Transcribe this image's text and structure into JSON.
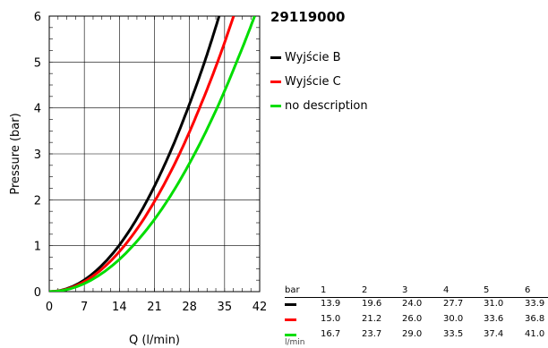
{
  "chart_data": {
    "type": "line",
    "title": "29119000",
    "xlabel": "Q (l/min)",
    "ylabel": "Pressure (bar)",
    "xlim": [
      0,
      42
    ],
    "ylim": [
      0,
      6
    ],
    "xticks": [
      0,
      7,
      14,
      21,
      28,
      35,
      42
    ],
    "yticks": [
      0,
      1,
      2,
      3,
      4,
      5,
      6
    ],
    "grid": true,
    "legend_position": "right",
    "series": [
      {
        "name": "Wyjście B",
        "color": "#000000",
        "x": [
          0,
          13.9,
          19.6,
          24.0,
          27.7,
          31.0,
          33.9,
          34.5
        ],
        "y": [
          0,
          1,
          2,
          3,
          4,
          5,
          6,
          6.2
        ]
      },
      {
        "name": "Wyjście C",
        "color": "#ff0000",
        "x": [
          0,
          15.0,
          21.2,
          26.0,
          30.0,
          33.6,
          36.8
        ],
        "y": [
          0,
          1,
          2,
          3,
          4,
          5,
          6
        ]
      },
      {
        "name": "no description",
        "color": "#00dd00",
        "x": [
          0,
          16.7,
          23.7,
          29.0,
          33.5,
          37.4,
          41.0
        ],
        "y": [
          0,
          1,
          2,
          3,
          4,
          5,
          6
        ]
      }
    ]
  },
  "table": {
    "header_label": "bar",
    "unit_label": "l/min",
    "pressures": [
      "1",
      "2",
      "3",
      "4",
      "5",
      "6"
    ],
    "rows": [
      {
        "color": "#000000",
        "values": [
          "13.9",
          "19.6",
          "24.0",
          "27.7",
          "31.0",
          "33.9"
        ]
      },
      {
        "color": "#ff0000",
        "values": [
          "15.0",
          "21.2",
          "26.0",
          "30.0",
          "33.6",
          "36.8"
        ]
      },
      {
        "color": "#00dd00",
        "values": [
          "16.7",
          "23.7",
          "29.0",
          "33.5",
          "37.4",
          "41.0"
        ]
      }
    ]
  }
}
